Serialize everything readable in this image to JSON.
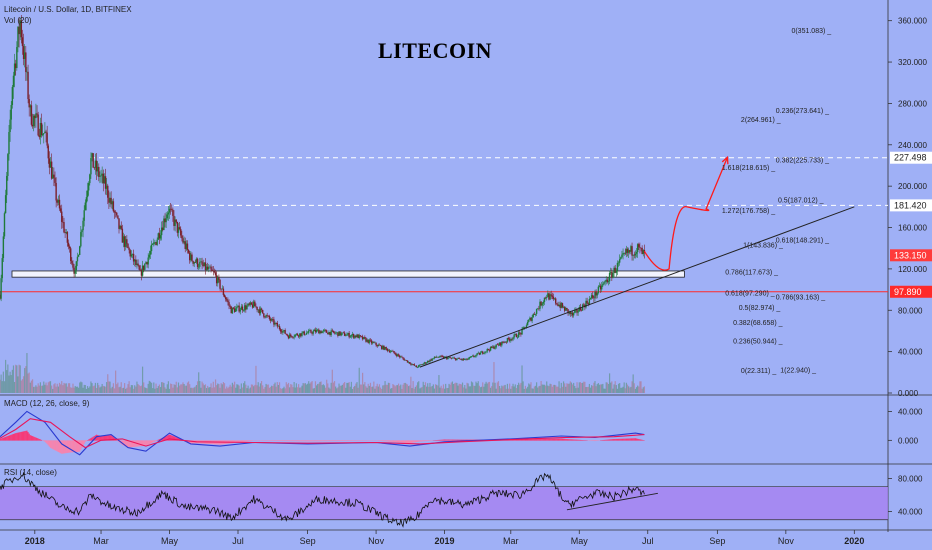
{
  "header": {
    "symbol_line": "Litecoin / U.S. Dollar, 1D, BITFINEX",
    "vol_label": "Vol (20)",
    "annotation_title": "LITECOIN"
  },
  "colors": {
    "background": "#9fb0f6",
    "candle_up": "#1f7a3a",
    "candle_down": "#7a1f2a",
    "trendline": "#222222",
    "projection": "#ff1a1a",
    "support_line": "#ff2a2a",
    "dashed_levels": "#ffffff",
    "macd_line": "#2a3ad0",
    "signal_line": "#e8155a",
    "rsi_line": "#111111",
    "rsi_band": "#a77ef0"
  },
  "chart_data": [
    {
      "type": "candlestick",
      "panel": "price",
      "ylim": [
        0,
        380
      ],
      "y_ticks": [
        "360.000",
        "320.000",
        "280.000",
        "240.000",
        "200.000",
        "160.000",
        "120.000",
        "80.000",
        "40.000",
        "0.000"
      ],
      "x_ticks": [
        "2018",
        "Mar",
        "May",
        "Jul",
        "Sep",
        "Nov",
        "2019",
        "Mar",
        "May",
        "Jul",
        "Sep",
        "Nov",
        "2020"
      ],
      "path_points": [
        {
          "x": "2017-12-01",
          "y": 95
        },
        {
          "x": "2017-12-12",
          "y": 300
        },
        {
          "x": "2017-12-19",
          "y": 360
        },
        {
          "x": "2017-12-28",
          "y": 270
        },
        {
          "x": "2018-01-10",
          "y": 250
        },
        {
          "x": "2018-01-20",
          "y": 190
        },
        {
          "x": "2018-02-06",
          "y": 115
        },
        {
          "x": "2018-02-20",
          "y": 225
        },
        {
          "x": "2018-03-05",
          "y": 200
        },
        {
          "x": "2018-03-20",
          "y": 150
        },
        {
          "x": "2018-04-05",
          "y": 115
        },
        {
          "x": "2018-04-20",
          "y": 150
        },
        {
          "x": "2018-04-30",
          "y": 178
        },
        {
          "x": "2018-05-20",
          "y": 130
        },
        {
          "x": "2018-06-10",
          "y": 115
        },
        {
          "x": "2018-06-25",
          "y": 80
        },
        {
          "x": "2018-07-15",
          "y": 85
        },
        {
          "x": "2018-08-15",
          "y": 55
        },
        {
          "x": "2018-09-10",
          "y": 60
        },
        {
          "x": "2018-10-15",
          "y": 55
        },
        {
          "x": "2018-11-15",
          "y": 40
        },
        {
          "x": "2018-12-07",
          "y": 25
        },
        {
          "x": "2018-12-25",
          "y": 35
        },
        {
          "x": "2019-01-20",
          "y": 32
        },
        {
          "x": "2019-02-15",
          "y": 45
        },
        {
          "x": "2019-03-10",
          "y": 58
        },
        {
          "x": "2019-04-02",
          "y": 95
        },
        {
          "x": "2019-04-25",
          "y": 75
        },
        {
          "x": "2019-05-15",
          "y": 95
        },
        {
          "x": "2019-05-30",
          "y": 115
        },
        {
          "x": "2019-06-12",
          "y": 135
        },
        {
          "x": "2019-06-22",
          "y": 140
        },
        {
          "x": "2019-06-28",
          "y": 133
        }
      ],
      "current_price": "133.150",
      "horizontal_levels": [
        {
          "value": 227.498,
          "label": "227.498",
          "style": "dashed"
        },
        {
          "value": 181.42,
          "label": "181.420",
          "style": "dashed"
        },
        {
          "value": 97.89,
          "label": "97.890",
          "style": "solid"
        }
      ],
      "support_zone": [
        112,
        118
      ],
      "trendline": [
        {
          "x": "2018-12-10",
          "y": 25
        },
        {
          "x": "2020-01-01",
          "y": 180
        }
      ],
      "projection_path": [
        {
          "x": "2019-06-28",
          "y": 137
        },
        {
          "x": "2019-07-20",
          "y": 120
        },
        {
          "x": "2019-08-05",
          "y": 180
        },
        {
          "x": "2019-08-22",
          "y": 178
        },
        {
          "x": "2019-09-10",
          "y": 228
        }
      ],
      "fib_labels": [
        {
          "text": "0(351.083)",
          "x": "2019-11-06",
          "y": 351
        },
        {
          "text": "0.236(273.641)",
          "x": "2019-10-23",
          "y": 273.6
        },
        {
          "text": "2(264.961)",
          "x": "2019-09-22",
          "y": 265
        },
        {
          "text": "0.382(225.733)",
          "x": "2019-10-23",
          "y": 225.7
        },
        {
          "text": "1.618(218.615)",
          "x": "2019-09-05",
          "y": 218.6
        },
        {
          "text": "0.5(187.012)",
          "x": "2019-10-25",
          "y": 187
        },
        {
          "text": "1.272(176.758)",
          "x": "2019-09-05",
          "y": 176.8
        },
        {
          "text": "0.618(148.291)",
          "x": "2019-10-23",
          "y": 148.3
        },
        {
          "text": "1(143.836)",
          "x": "2019-09-24",
          "y": 143.8
        },
        {
          "text": "0.786(117.673)",
          "x": "2019-09-08",
          "y": 117.7
        },
        {
          "text": "0.618(97.290)",
          "x": "2019-09-08",
          "y": 97.3
        },
        {
          "text": "0.786(93.163)",
          "x": "2019-10-23",
          "y": 93.2
        },
        {
          "text": "0.5(82.974)",
          "x": "2019-09-20",
          "y": 83
        },
        {
          "text": "0.382(68.658)",
          "x": "2019-09-15",
          "y": 68.7
        },
        {
          "text": "0.236(50.944)",
          "x": "2019-09-15",
          "y": 50.9
        },
        {
          "text": "0(22.311)",
          "x": "2019-09-22",
          "y": 22.3
        },
        {
          "text": "1(22.940)",
          "x": "2019-10-27",
          "y": 22.9
        }
      ]
    },
    {
      "type": "line",
      "panel": "macd",
      "title": "MACD (12, 26, close, 9)",
      "ylim": [
        -30,
        60
      ],
      "y_ticks": [
        "40.000",
        "0.000"
      ],
      "series": [
        {
          "values_by_date": [
            [
              "2017-12-01",
              5
            ],
            [
              "2017-12-15",
              25
            ],
            [
              "2017-12-25",
              40
            ],
            [
              "2018-01-10",
              25
            ],
            [
              "2018-01-25",
              -5
            ],
            [
              "2018-02-10",
              -20
            ],
            [
              "2018-02-25",
              5
            ],
            [
              "2018-03-10",
              8
            ],
            [
              "2018-03-25",
              -10
            ],
            [
              "2018-04-10",
              -15
            ],
            [
              "2018-05-01",
              10
            ],
            [
              "2018-05-20",
              -5
            ],
            [
              "2018-06-15",
              -8
            ],
            [
              "2018-07-15",
              -3
            ],
            [
              "2018-09-01",
              -5
            ],
            [
              "2018-11-01",
              -3
            ],
            [
              "2018-12-01",
              -8
            ],
            [
              "2019-01-01",
              -2
            ],
            [
              "2019-03-01",
              2
            ],
            [
              "2019-04-15",
              6
            ],
            [
              "2019-05-15",
              4
            ],
            [
              "2019-06-20",
              10
            ],
            [
              "2019-06-28",
              8
            ]
          ]
        },
        {
          "values_by_date": [
            [
              "2017-12-01",
              3
            ],
            [
              "2017-12-15",
              15
            ],
            [
              "2017-12-28",
              30
            ],
            [
              "2018-01-15",
              25
            ],
            [
              "2018-02-01",
              5
            ],
            [
              "2018-02-15",
              -10
            ],
            [
              "2018-03-01",
              0
            ],
            [
              "2018-03-20",
              2
            ],
            [
              "2018-04-10",
              -8
            ],
            [
              "2018-05-01",
              2
            ],
            [
              "2018-05-25",
              -2
            ],
            [
              "2018-07-15",
              -3
            ],
            [
              "2018-09-01",
              -4
            ],
            [
              "2018-11-01",
              -3
            ],
            [
              "2018-12-10",
              -5
            ],
            [
              "2019-01-15",
              -2
            ],
            [
              "2019-03-01",
              1
            ],
            [
              "2019-04-20",
              4
            ],
            [
              "2019-06-01",
              5
            ],
            [
              "2019-06-28",
              8
            ]
          ]
        }
      ]
    },
    {
      "type": "line",
      "panel": "rsi",
      "title": "RSI (14, close)",
      "ylim": [
        20,
        95
      ],
      "y_ticks": [
        "80.000",
        "40.000"
      ],
      "band": [
        30,
        70
      ],
      "values_by_date": [
        [
          "2017-12-01",
          70
        ],
        [
          "2017-12-20",
          85
        ],
        [
          "2018-01-05",
          65
        ],
        [
          "2018-01-25",
          45
        ],
        [
          "2018-02-10",
          40
        ],
        [
          "2018-02-20",
          60
        ],
        [
          "2018-03-10",
          45
        ],
        [
          "2018-04-01",
          38
        ],
        [
          "2018-04-25",
          62
        ],
        [
          "2018-05-15",
          45
        ],
        [
          "2018-06-10",
          42
        ],
        [
          "2018-06-25",
          32
        ],
        [
          "2018-07-15",
          55
        ],
        [
          "2018-08-15",
          30
        ],
        [
          "2018-09-10",
          55
        ],
        [
          "2018-10-15",
          50
        ],
        [
          "2018-11-20",
          25
        ],
        [
          "2018-12-05",
          30
        ],
        [
          "2018-12-20",
          55
        ],
        [
          "2019-01-20",
          48
        ],
        [
          "2019-02-15",
          62
        ],
        [
          "2019-03-10",
          60
        ],
        [
          "2019-04-02",
          85
        ],
        [
          "2019-04-20",
          48
        ],
        [
          "2019-05-15",
          62
        ],
        [
          "2019-06-01",
          58
        ],
        [
          "2019-06-20",
          68
        ],
        [
          "2019-06-28",
          60
        ]
      ],
      "trendline": [
        {
          "x": "2019-04-20",
          "y": 42
        },
        {
          "x": "2019-07-10",
          "y": 62
        }
      ]
    }
  ]
}
